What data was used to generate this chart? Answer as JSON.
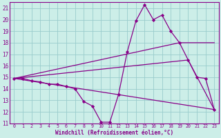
{
  "background_color": "#cceee8",
  "grid_color": "#99cccc",
  "line_color": "#880088",
  "xlabel": "Windchill (Refroidissement éolien,°C)",
  "xlim": [
    -0.5,
    23.5
  ],
  "ylim": [
    11,
    21.5
  ],
  "yticks": [
    11,
    12,
    13,
    14,
    15,
    16,
    17,
    18,
    19,
    20,
    21
  ],
  "xticks": [
    0,
    1,
    2,
    3,
    4,
    5,
    6,
    7,
    8,
    9,
    10,
    11,
    12,
    13,
    14,
    15,
    16,
    17,
    18,
    19,
    20,
    21,
    22,
    23
  ],
  "line_main": {
    "x": [
      0,
      1,
      2,
      3,
      4,
      5,
      6,
      7,
      8,
      9,
      10,
      11,
      12,
      13,
      14,
      15,
      16,
      17,
      18,
      19,
      20,
      21,
      22,
      23
    ],
    "y": [
      14.9,
      14.9,
      14.7,
      14.6,
      14.4,
      14.4,
      14.2,
      14.0,
      12.9,
      12.5,
      11.1,
      11.1,
      13.5,
      17.2,
      19.9,
      21.3,
      20.0,
      20.4,
      19.0,
      18.0,
      16.5,
      15.0,
      14.9,
      12.2
    ]
  },
  "line_straight1": {
    "x": [
      0,
      23
    ],
    "y": [
      14.9,
      12.2
    ]
  },
  "line_straight2": {
    "x": [
      0,
      19,
      23
    ],
    "y": [
      14.9,
      18.0,
      18.0
    ]
  },
  "line_straight3": {
    "x": [
      0,
      20,
      23
    ],
    "y": [
      14.9,
      16.5,
      12.2
    ]
  }
}
